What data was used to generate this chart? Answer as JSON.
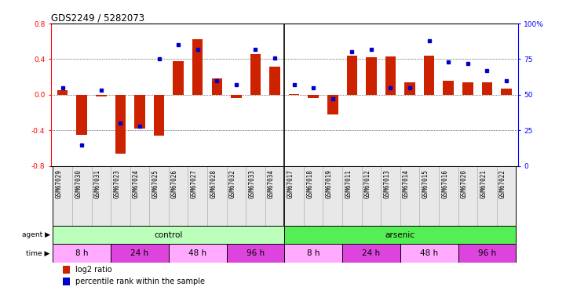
{
  "title": "GDS2249 / 5282073",
  "samples": [
    "GSM67029",
    "GSM67030",
    "GSM67031",
    "GSM67023",
    "GSM67024",
    "GSM67025",
    "GSM67026",
    "GSM67027",
    "GSM67028",
    "GSM67032",
    "GSM67033",
    "GSM67034",
    "GSM67017",
    "GSM67018",
    "GSM67019",
    "GSM67011",
    "GSM67012",
    "GSM67013",
    "GSM67014",
    "GSM67015",
    "GSM67016",
    "GSM67020",
    "GSM67021",
    "GSM67022"
  ],
  "log2ratio": [
    0.05,
    -0.45,
    -0.02,
    -0.66,
    -0.38,
    -0.46,
    0.38,
    0.62,
    0.18,
    -0.04,
    0.46,
    0.32,
    0.01,
    -0.04,
    -0.22,
    0.44,
    0.42,
    0.43,
    0.14,
    0.44,
    0.16,
    0.14,
    0.14,
    0.07
  ],
  "percentile": [
    55,
    15,
    53,
    30,
    28,
    75,
    85,
    82,
    60,
    57,
    82,
    76,
    57,
    55,
    47,
    80,
    82,
    55,
    55,
    88,
    73,
    72,
    67,
    60
  ],
  "bar_color": "#cc2200",
  "dot_color": "#0000cc",
  "agent_control_color": "#bbffbb",
  "agent_arsenic_color": "#55ee55",
  "time_light_color": "#ffaaff",
  "time_dark_color": "#dd44dd",
  "time_labels": [
    "8 h",
    "24 h",
    "48 h",
    "96 h"
  ],
  "control_label": "control",
  "arsenic_label": "arsenic",
  "legend_ratio": "log2 ratio",
  "legend_pct": "percentile rank within the sample"
}
